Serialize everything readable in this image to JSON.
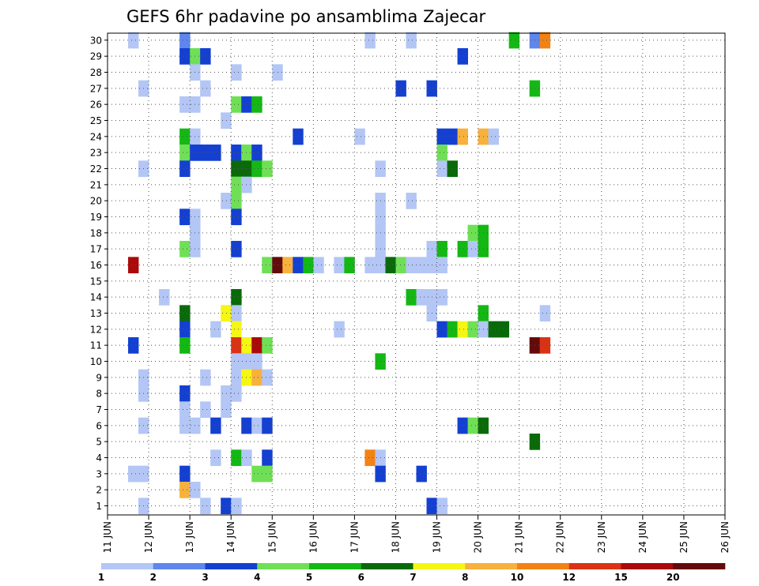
{
  "chart_data": {
    "type": "heatmap",
    "title": "GEFS 6hr padavine po ansamblima Zajecar",
    "xlabel": "",
    "ylabel": "",
    "x_tick_labels": [
      "11 JUN",
      "12 JUN",
      "13 JUN",
      "14 JUN",
      "15 JUN",
      "16 JUN",
      "17 JUN",
      "18 JUN",
      "19 JUN",
      "20 JUN",
      "21 JUN",
      "22 JUN",
      "23 JUN",
      "24 JUN",
      "25 JUN",
      "26 JUN"
    ],
    "y_tick_labels": [
      "1",
      "2",
      "3",
      "4",
      "5",
      "6",
      "7",
      "8",
      "9",
      "10",
      "11",
      "12",
      "13",
      "14",
      "15",
      "16",
      "17",
      "18",
      "19",
      "20",
      "21",
      "22",
      "23",
      "24",
      "25",
      "26",
      "27",
      "28",
      "29",
      "30"
    ],
    "x_step": "6 hours",
    "grid": true,
    "legend": {
      "position": "bottom",
      "thresholds": [
        "1",
        "2",
        "3",
        "4",
        "5",
        "6",
        "7",
        "8",
        "10",
        "12",
        "15",
        "20"
      ],
      "colors": [
        "#b3c6f5",
        "#5e86ec",
        "#1440d2",
        "#6fe056",
        "#14b814",
        "#0a6a0a",
        "#f6f614",
        "#f7b13c",
        "#f38214",
        "#da3214",
        "#aa0a0a",
        "#640a0a"
      ]
    },
    "cells": [
      [
        7,
        30,
        2
      ],
      [
        2,
        30,
        1
      ],
      [
        25,
        30,
        1
      ],
      [
        29,
        30,
        1
      ],
      [
        39,
        30,
        5
      ],
      [
        41,
        30,
        2
      ],
      [
        42,
        30,
        9
      ],
      [
        7,
        29,
        3
      ],
      [
        8,
        29,
        4
      ],
      [
        9,
        29,
        3
      ],
      [
        34,
        29,
        3
      ],
      [
        8,
        28,
        1
      ],
      [
        12,
        28,
        1
      ],
      [
        16,
        28,
        1
      ],
      [
        3,
        27,
        1
      ],
      [
        9,
        27,
        1
      ],
      [
        28,
        27,
        3
      ],
      [
        31,
        27,
        3
      ],
      [
        41,
        27,
        5
      ],
      [
        7,
        26,
        1
      ],
      [
        8,
        26,
        1
      ],
      [
        12,
        26,
        4
      ],
      [
        13,
        26,
        3
      ],
      [
        14,
        26,
        5
      ],
      [
        11,
        25,
        1
      ],
      [
        7,
        24,
        5
      ],
      [
        8,
        24,
        1
      ],
      [
        18,
        24,
        3
      ],
      [
        24,
        24,
        1
      ],
      [
        36,
        24,
        8
      ],
      [
        37,
        24,
        1
      ],
      [
        32,
        24,
        3
      ],
      [
        33,
        24,
        3
      ],
      [
        34,
        24,
        8
      ],
      [
        7,
        23,
        4
      ],
      [
        8,
        23,
        3
      ],
      [
        9,
        23,
        3
      ],
      [
        10,
        23,
        3
      ],
      [
        12,
        23,
        3
      ],
      [
        13,
        23,
        4
      ],
      [
        14,
        23,
        3
      ],
      [
        32,
        23,
        4
      ],
      [
        3,
        22,
        1
      ],
      [
        7,
        22,
        3
      ],
      [
        12,
        22,
        6
      ],
      [
        13,
        22,
        6
      ],
      [
        14,
        22,
        5
      ],
      [
        15,
        22,
        4
      ],
      [
        26,
        22,
        1
      ],
      [
        32,
        22,
        1
      ],
      [
        33,
        22,
        6
      ],
      [
        12,
        21,
        4
      ],
      [
        13,
        21,
        1
      ],
      [
        11,
        20,
        1
      ],
      [
        12,
        20,
        4
      ],
      [
        26,
        20,
        1
      ],
      [
        29,
        20,
        1
      ],
      [
        7,
        19,
        3
      ],
      [
        8,
        19,
        1
      ],
      [
        12,
        19,
        3
      ],
      [
        26,
        19,
        1
      ],
      [
        8,
        18,
        1
      ],
      [
        26,
        18,
        1
      ],
      [
        35,
        18,
        4
      ],
      [
        36,
        18,
        5
      ],
      [
        7,
        17,
        4
      ],
      [
        8,
        17,
        1
      ],
      [
        12,
        17,
        3
      ],
      [
        26,
        17,
        1
      ],
      [
        31,
        17,
        1
      ],
      [
        32,
        17,
        5
      ],
      [
        34,
        17,
        5
      ],
      [
        35,
        17,
        1
      ],
      [
        36,
        17,
        5
      ],
      [
        2,
        16,
        11
      ],
      [
        15,
        16,
        4
      ],
      [
        16,
        16,
        12
      ],
      [
        17,
        16,
        8
      ],
      [
        18,
        16,
        3
      ],
      [
        19,
        16,
        5
      ],
      [
        20,
        16,
        1
      ],
      [
        22,
        16,
        1
      ],
      [
        23,
        16,
        5
      ],
      [
        25,
        16,
        1
      ],
      [
        26,
        16,
        1
      ],
      [
        27,
        16,
        6
      ],
      [
        28,
        16,
        4
      ],
      [
        29,
        16,
        1
      ],
      [
        30,
        16,
        1
      ],
      [
        31,
        16,
        1
      ],
      [
        32,
        16,
        1
      ],
      [
        5,
        14,
        1
      ],
      [
        12,
        14,
        6
      ],
      [
        29,
        14,
        5
      ],
      [
        30,
        14,
        1
      ],
      [
        31,
        14,
        1
      ],
      [
        32,
        14,
        1
      ],
      [
        7,
        13,
        6
      ],
      [
        11,
        13,
        7
      ],
      [
        12,
        13,
        1
      ],
      [
        31,
        13,
        1
      ],
      [
        36,
        13,
        5
      ],
      [
        42,
        13,
        1
      ],
      [
        7,
        12,
        3
      ],
      [
        10,
        12,
        1
      ],
      [
        12,
        12,
        7
      ],
      [
        22,
        12,
        1
      ],
      [
        32,
        12,
        3
      ],
      [
        33,
        12,
        5
      ],
      [
        34,
        12,
        7
      ],
      [
        35,
        12,
        4
      ],
      [
        36,
        12,
        1
      ],
      [
        37,
        12,
        6
      ],
      [
        38,
        12,
        6
      ],
      [
        2,
        11,
        3
      ],
      [
        7,
        11,
        5
      ],
      [
        12,
        11,
        10
      ],
      [
        13,
        11,
        7
      ],
      [
        14,
        11,
        11
      ],
      [
        15,
        11,
        4
      ],
      [
        41,
        11,
        12
      ],
      [
        42,
        11,
        10
      ],
      [
        12,
        10,
        1
      ],
      [
        13,
        10,
        1
      ],
      [
        14,
        10,
        1
      ],
      [
        26,
        10,
        5
      ],
      [
        3,
        9,
        1
      ],
      [
        9,
        9,
        1
      ],
      [
        12,
        9,
        1
      ],
      [
        13,
        9,
        7
      ],
      [
        14,
        9,
        8
      ],
      [
        15,
        9,
        1
      ],
      [
        3,
        8,
        1
      ],
      [
        7,
        8,
        3
      ],
      [
        11,
        8,
        1
      ],
      [
        12,
        8,
        1
      ],
      [
        7,
        7,
        1
      ],
      [
        9,
        7,
        1
      ],
      [
        11,
        7,
        1
      ],
      [
        3,
        6,
        1
      ],
      [
        7,
        6,
        1
      ],
      [
        8,
        6,
        1
      ],
      [
        10,
        6,
        3
      ],
      [
        13,
        6,
        3
      ],
      [
        14,
        6,
        1
      ],
      [
        15,
        6,
        3
      ],
      [
        34,
        6,
        3
      ],
      [
        35,
        6,
        4
      ],
      [
        36,
        6,
        6
      ],
      [
        41,
        5,
        6
      ],
      [
        10,
        4,
        1
      ],
      [
        12,
        4,
        5
      ],
      [
        13,
        4,
        1
      ],
      [
        15,
        4,
        3
      ],
      [
        25,
        4,
        9
      ],
      [
        26,
        4,
        1
      ],
      [
        2,
        3,
        1
      ],
      [
        3,
        3,
        1
      ],
      [
        7,
        3,
        3
      ],
      [
        14,
        3,
        4
      ],
      [
        15,
        3,
        4
      ],
      [
        26,
        3,
        3
      ],
      [
        30,
        3,
        3
      ],
      [
        7,
        2,
        8
      ],
      [
        8,
        2,
        1
      ],
      [
        3,
        1,
        1
      ],
      [
        9,
        1,
        1
      ],
      [
        11,
        1,
        3
      ],
      [
        12,
        1,
        1
      ],
      [
        31,
        1,
        3
      ],
      [
        32,
        1,
        1
      ]
    ]
  }
}
